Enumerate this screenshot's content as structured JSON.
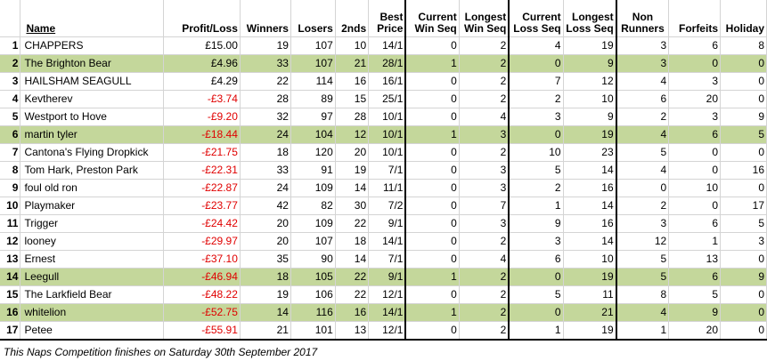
{
  "headers": {
    "pos": "",
    "name": "Name",
    "profit": "Profit/Loss",
    "winners": "Winners",
    "losers": "Losers",
    "seconds": "2nds",
    "best_price_line1": "Best",
    "best_price_line2": "Price",
    "cur_win_line1": "Current",
    "cur_win_line2": "Win Seq",
    "long_win_line1": "Longest",
    "long_win_line2": "Win Seq",
    "cur_loss_line1": "Current",
    "cur_loss_line2": "Loss Seq",
    "long_loss_line1": "Longest",
    "long_loss_line2": "Loss Seq",
    "non_runners_line1": "Non",
    "non_runners_line2": "Runners",
    "forfeits": "Forfeits",
    "holiday": "Holiday"
  },
  "rows": [
    {
      "pos": "1",
      "name": "CHAPPERS",
      "profit": "£15.00",
      "neg": false,
      "winners": "19",
      "losers": "107",
      "seconds": "10",
      "best": "14/1",
      "cur_win": "0",
      "long_win": "2",
      "cur_loss": "4",
      "long_loss": "19",
      "non_runners": "3",
      "forfeits": "6",
      "holiday": "8",
      "green": false
    },
    {
      "pos": "2",
      "name": "The Brighton Bear",
      "profit": "£4.96",
      "neg": false,
      "winners": "33",
      "losers": "107",
      "seconds": "21",
      "best": "28/1",
      "cur_win": "1",
      "long_win": "2",
      "cur_loss": "0",
      "long_loss": "9",
      "non_runners": "3",
      "forfeits": "0",
      "holiday": "0",
      "green": true
    },
    {
      "pos": "3",
      "name": "HAILSHAM SEAGULL",
      "profit": "£4.29",
      "neg": false,
      "winners": "22",
      "losers": "114",
      "seconds": "16",
      "best": "16/1",
      "cur_win": "0",
      "long_win": "2",
      "cur_loss": "7",
      "long_loss": "12",
      "non_runners": "4",
      "forfeits": "3",
      "holiday": "0",
      "green": false
    },
    {
      "pos": "4",
      "name": "Kevtherev",
      "profit": "-£3.74",
      "neg": true,
      "winners": "28",
      "losers": "89",
      "seconds": "15",
      "best": "25/1",
      "cur_win": "0",
      "long_win": "2",
      "cur_loss": "2",
      "long_loss": "10",
      "non_runners": "6",
      "forfeits": "20",
      "holiday": "0",
      "green": false
    },
    {
      "pos": "5",
      "name": "Westport to Hove",
      "profit": "-£9.20",
      "neg": true,
      "winners": "32",
      "losers": "97",
      "seconds": "28",
      "best": "10/1",
      "cur_win": "0",
      "long_win": "4",
      "cur_loss": "3",
      "long_loss": "9",
      "non_runners": "2",
      "forfeits": "3",
      "holiday": "9",
      "green": false
    },
    {
      "pos": "6",
      "name": "martin tyler",
      "profit": "-£18.44",
      "neg": true,
      "winners": "24",
      "losers": "104",
      "seconds": "12",
      "best": "10/1",
      "cur_win": "1",
      "long_win": "3",
      "cur_loss": "0",
      "long_loss": "19",
      "non_runners": "4",
      "forfeits": "6",
      "holiday": "5",
      "green": true
    },
    {
      "pos": "7",
      "name": "Cantona's Flying Dropkick",
      "profit": "-£21.75",
      "neg": true,
      "winners": "18",
      "losers": "120",
      "seconds": "20",
      "best": "10/1",
      "cur_win": "0",
      "long_win": "2",
      "cur_loss": "10",
      "long_loss": "23",
      "non_runners": "5",
      "forfeits": "0",
      "holiday": "0",
      "green": false
    },
    {
      "pos": "8",
      "name": "Tom Hark, Preston Park",
      "profit": "-£22.31",
      "neg": true,
      "winners": "33",
      "losers": "91",
      "seconds": "19",
      "best": "7/1",
      "cur_win": "0",
      "long_win": "3",
      "cur_loss": "5",
      "long_loss": "14",
      "non_runners": "4",
      "forfeits": "0",
      "holiday": "16",
      "green": false
    },
    {
      "pos": "9",
      "name": "foul old ron",
      "profit": "-£22.87",
      "neg": true,
      "winners": "24",
      "losers": "109",
      "seconds": "14",
      "best": "11/1",
      "cur_win": "0",
      "long_win": "3",
      "cur_loss": "2",
      "long_loss": "16",
      "non_runners": "0",
      "forfeits": "10",
      "holiday": "0",
      "green": false
    },
    {
      "pos": "10",
      "name": "Playmaker",
      "profit": "-£23.77",
      "neg": true,
      "winners": "42",
      "losers": "82",
      "seconds": "30",
      "best": "7/2",
      "cur_win": "0",
      "long_win": "7",
      "cur_loss": "1",
      "long_loss": "14",
      "non_runners": "2",
      "forfeits": "0",
      "holiday": "17",
      "green": false
    },
    {
      "pos": "11",
      "name": "Trigger",
      "profit": "-£24.42",
      "neg": true,
      "winners": "20",
      "losers": "109",
      "seconds": "22",
      "best": "9/1",
      "cur_win": "0",
      "long_win": "3",
      "cur_loss": "9",
      "long_loss": "16",
      "non_runners": "3",
      "forfeits": "6",
      "holiday": "5",
      "green": false
    },
    {
      "pos": "12",
      "name": "looney",
      "profit": "-£29.97",
      "neg": true,
      "winners": "20",
      "losers": "107",
      "seconds": "18",
      "best": "14/1",
      "cur_win": "0",
      "long_win": "2",
      "cur_loss": "3",
      "long_loss": "14",
      "non_runners": "12",
      "forfeits": "1",
      "holiday": "3",
      "green": false
    },
    {
      "pos": "13",
      "name": "Ernest",
      "profit": "-£37.10",
      "neg": true,
      "winners": "35",
      "losers": "90",
      "seconds": "14",
      "best": "7/1",
      "cur_win": "0",
      "long_win": "4",
      "cur_loss": "6",
      "long_loss": "10",
      "non_runners": "5",
      "forfeits": "13",
      "holiday": "0",
      "green": false
    },
    {
      "pos": "14",
      "name": "Leegull",
      "profit": "-£46.94",
      "neg": true,
      "winners": "18",
      "losers": "105",
      "seconds": "22",
      "best": "9/1",
      "cur_win": "1",
      "long_win": "2",
      "cur_loss": "0",
      "long_loss": "19",
      "non_runners": "5",
      "forfeits": "6",
      "holiday": "9",
      "green": true
    },
    {
      "pos": "15",
      "name": "The Larkfield Bear",
      "profit": "-£48.22",
      "neg": true,
      "winners": "19",
      "losers": "106",
      "seconds": "22",
      "best": "12/1",
      "cur_win": "0",
      "long_win": "2",
      "cur_loss": "5",
      "long_loss": "11",
      "non_runners": "8",
      "forfeits": "5",
      "holiday": "0",
      "green": false
    },
    {
      "pos": "16",
      "name": "whitelion",
      "profit": "-£52.75",
      "neg": true,
      "winners": "14",
      "losers": "116",
      "seconds": "16",
      "best": "14/1",
      "cur_win": "1",
      "long_win": "2",
      "cur_loss": "0",
      "long_loss": "21",
      "non_runners": "4",
      "forfeits": "9",
      "holiday": "0",
      "green": true
    },
    {
      "pos": "17",
      "name": "Petee",
      "profit": "-£55.91",
      "neg": true,
      "winners": "21",
      "losers": "101",
      "seconds": "13",
      "best": "12/1",
      "cur_win": "0",
      "long_win": "2",
      "cur_loss": "1",
      "long_loss": "19",
      "non_runners": "1",
      "forfeits": "20",
      "holiday": "0",
      "green": false
    }
  ],
  "footer": "This Naps Competition finishes on Saturday 30th September 2017",
  "colors": {
    "highlight": "#c4d79b",
    "negative": "#e00000",
    "border": "#000000"
  }
}
